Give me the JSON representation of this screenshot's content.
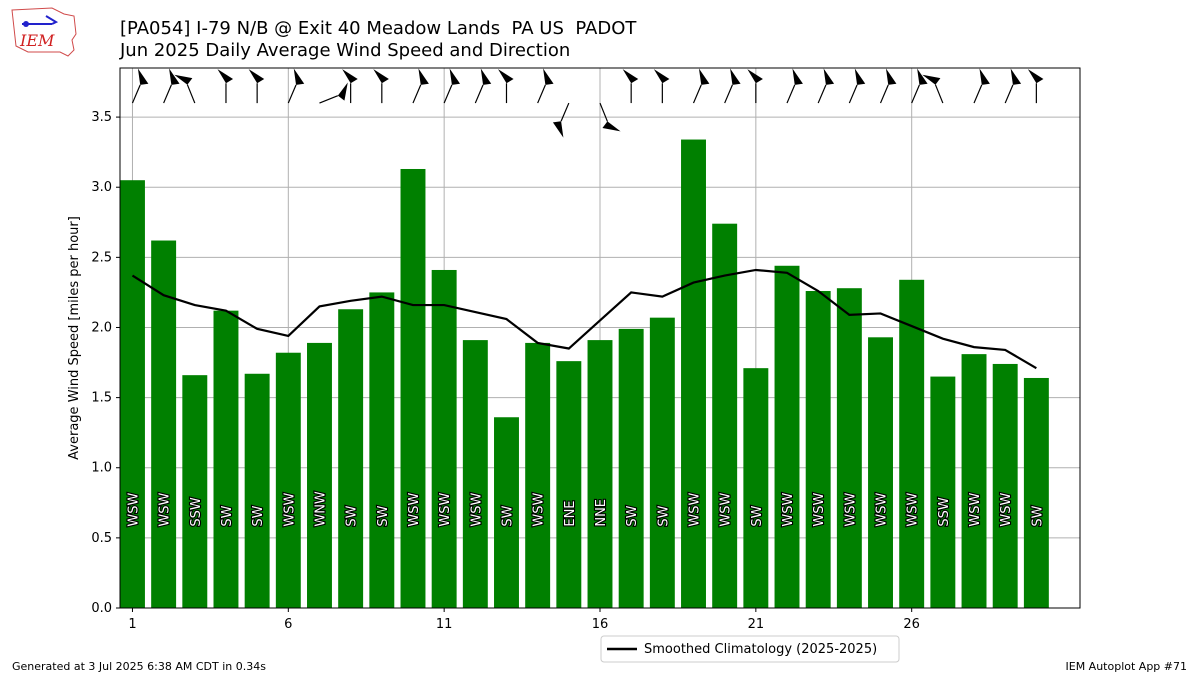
{
  "header": {
    "title_line1": "[PA054] I-79 N/B @ Exit 40 Meadow Lands  PA US  PADOT",
    "title_line2": "Jun 2025 Daily Average Wind Speed and Direction"
  },
  "logo": {
    "text": "IEM"
  },
  "footer": {
    "generated": "Generated at 3 Jul 2025 6:38 AM CDT in 0.34s",
    "app": "IEM Autoplot App #71"
  },
  "colors": {
    "bar": "#008000",
    "line": "#000000",
    "grid": "#b0b0b0"
  },
  "chart_data": {
    "type": "bar",
    "ylabel": "Average Wind Speed [miles per hour]",
    "xlabel": "",
    "ylim": [
      0,
      3.85
    ],
    "xlim": [
      0.6,
      31.4
    ],
    "grid": true,
    "legend_placement": "bottom-center",
    "y_ticks": [
      0.0,
      0.5,
      1.0,
      1.5,
      2.0,
      2.5,
      3.0,
      3.5
    ],
    "y_tick_labels": [
      "0.0",
      "0.5",
      "1.0",
      "1.5",
      "2.0",
      "2.5",
      "3.0",
      "3.5"
    ],
    "x_ticks": [
      1,
      6,
      11,
      16,
      21,
      26
    ],
    "x_tick_labels": [
      "1",
      "6",
      "11",
      "16",
      "21",
      "26"
    ],
    "days": [
      1,
      2,
      3,
      4,
      5,
      6,
      7,
      8,
      9,
      10,
      11,
      12,
      13,
      14,
      15,
      16,
      17,
      18,
      19,
      20,
      21,
      22,
      23,
      24,
      25,
      26,
      27,
      28,
      29,
      30
    ],
    "values": [
      3.05,
      2.62,
      1.66,
      2.12,
      1.67,
      1.82,
      1.89,
      2.13,
      2.25,
      3.13,
      2.41,
      1.91,
      1.36,
      1.89,
      1.76,
      1.91,
      1.99,
      2.07,
      3.34,
      2.74,
      1.71,
      2.44,
      2.26,
      2.28,
      1.93,
      2.34,
      1.65,
      1.81,
      1.74,
      1.64
    ],
    "directions": [
      "WSW",
      "WSW",
      "SSW",
      "SW",
      "SW",
      "WSW",
      "WNW",
      "SW",
      "SW",
      "WSW",
      "WSW",
      "WSW",
      "SW",
      "WSW",
      "ENE",
      "NNE",
      "SW",
      "SW",
      "WSW",
      "WSW",
      "SW",
      "WSW",
      "WSW",
      "WSW",
      "WSW",
      "WSW",
      "SSW",
      "WSW",
      "WSW",
      "SW"
    ],
    "direction_degrees": [
      248,
      248,
      203,
      225,
      225,
      248,
      293,
      225,
      225,
      248,
      248,
      248,
      225,
      248,
      68,
      23,
      225,
      225,
      248,
      248,
      225,
      248,
      248,
      248,
      248,
      248,
      203,
      248,
      248,
      225
    ],
    "series": [
      {
        "name": "Smoothed Climatology (2025-2025)",
        "type": "line",
        "x": [
          1,
          2,
          3,
          4,
          5,
          6,
          7,
          8,
          9,
          10,
          11,
          12,
          13,
          14,
          15,
          16,
          17,
          18,
          19,
          20,
          21,
          22,
          23,
          24,
          25,
          26,
          27,
          28,
          29,
          30
        ],
        "values": [
          2.37,
          2.23,
          2.16,
          2.12,
          1.99,
          1.94,
          2.15,
          2.19,
          2.22,
          2.16,
          2.16,
          2.11,
          2.06,
          1.89,
          1.85,
          2.05,
          2.25,
          2.22,
          2.32,
          2.37,
          2.41,
          2.39,
          2.26,
          2.09,
          2.1,
          2.01,
          1.92,
          1.86,
          1.84,
          1.71
        ]
      }
    ]
  }
}
